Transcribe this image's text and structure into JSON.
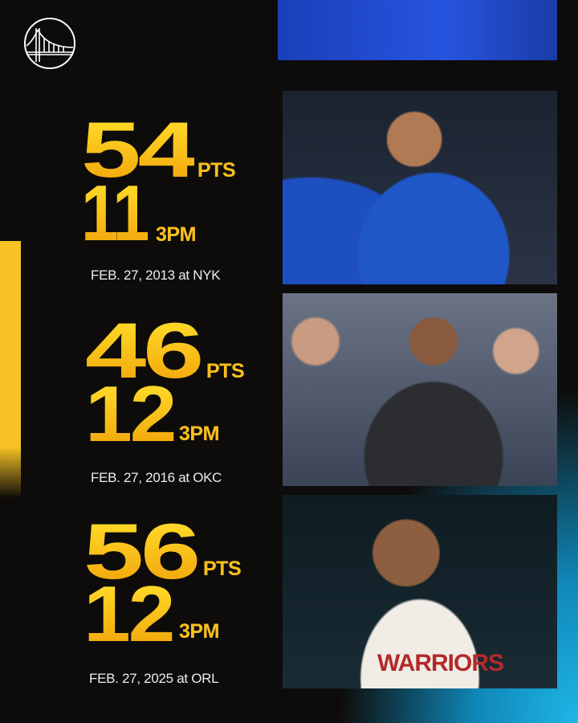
{
  "logo": {
    "name": "warriors-bridge-logo"
  },
  "colors": {
    "accent": "#fcc919",
    "background": "#0e0c0a",
    "cyan": "#1fb6e6"
  },
  "games": [
    {
      "points": "54",
      "points_unit": "PTS",
      "threes": "11",
      "threes_unit": "3PM",
      "date": "FEB. 27, 2013 at NYK"
    },
    {
      "points": "46",
      "points_unit": "PTS",
      "threes": "12",
      "threes_unit": "3PM",
      "date": "FEB. 27, 2016 at OKC"
    },
    {
      "points": "56",
      "points_unit": "PTS",
      "threes": "12",
      "threes_unit": "3PM",
      "date": "FEB. 27, 2025 at ORL"
    }
  ],
  "photos": {
    "jersey_text": "WARRIORS"
  }
}
